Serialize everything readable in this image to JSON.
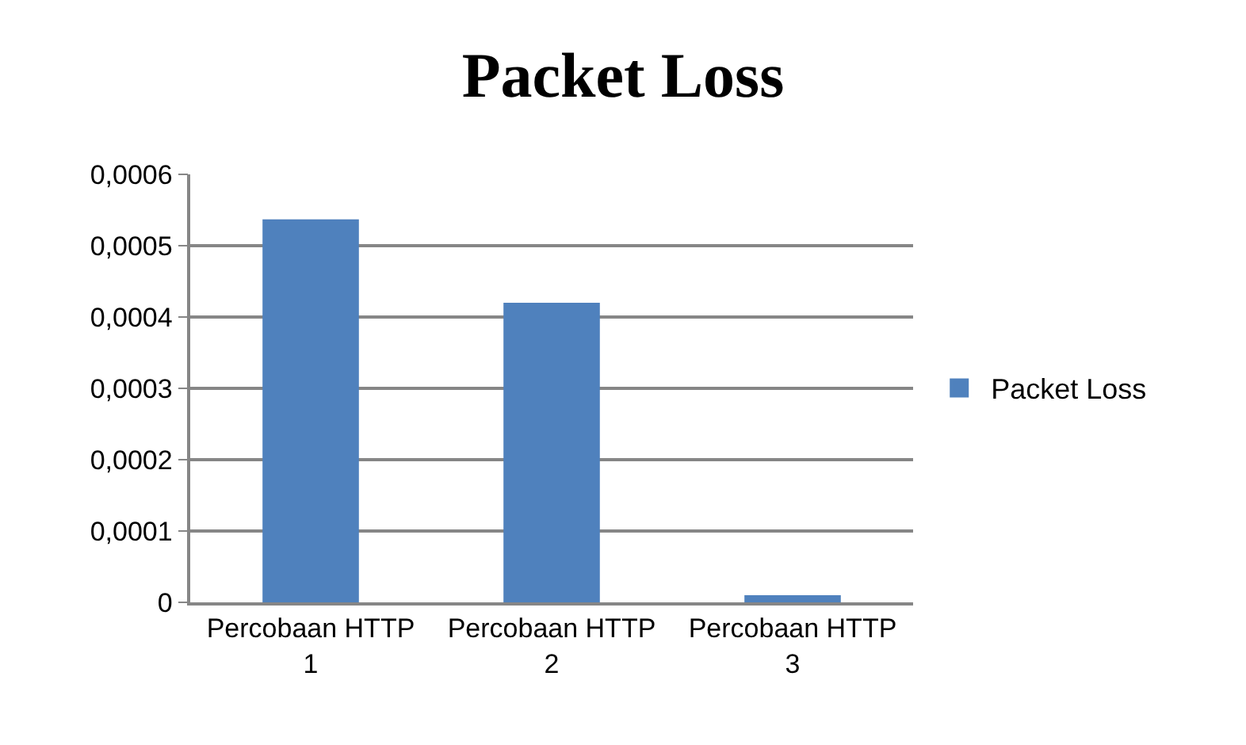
{
  "chart_data": {
    "type": "bar",
    "title": "Packet Loss",
    "categories": [
      "Percobaan HTTP 1",
      "Percobaan HTTP 2",
      "Percobaan HTTP 3"
    ],
    "series": [
      {
        "name": "Packet Loss",
        "color": "#4f81bd",
        "values": [
          0.000537,
          0.00042,
          1e-05
        ]
      }
    ],
    "ylim": [
      0,
      0.0006
    ],
    "yticks": [
      0,
      {
        "value": 0.0001,
        "label": "0,0001"
      },
      {
        "value": 0.0002,
        "label": "0,0002"
      },
      {
        "value": 0.0003,
        "label": "0,0003"
      },
      {
        "value": 0.0004,
        "label": "0,0004"
      },
      {
        "value": 0.0005,
        "label": "0,0005"
      },
      {
        "value": 0.0006,
        "label": "0,0006"
      }
    ],
    "grid": "y",
    "legend": "right"
  }
}
